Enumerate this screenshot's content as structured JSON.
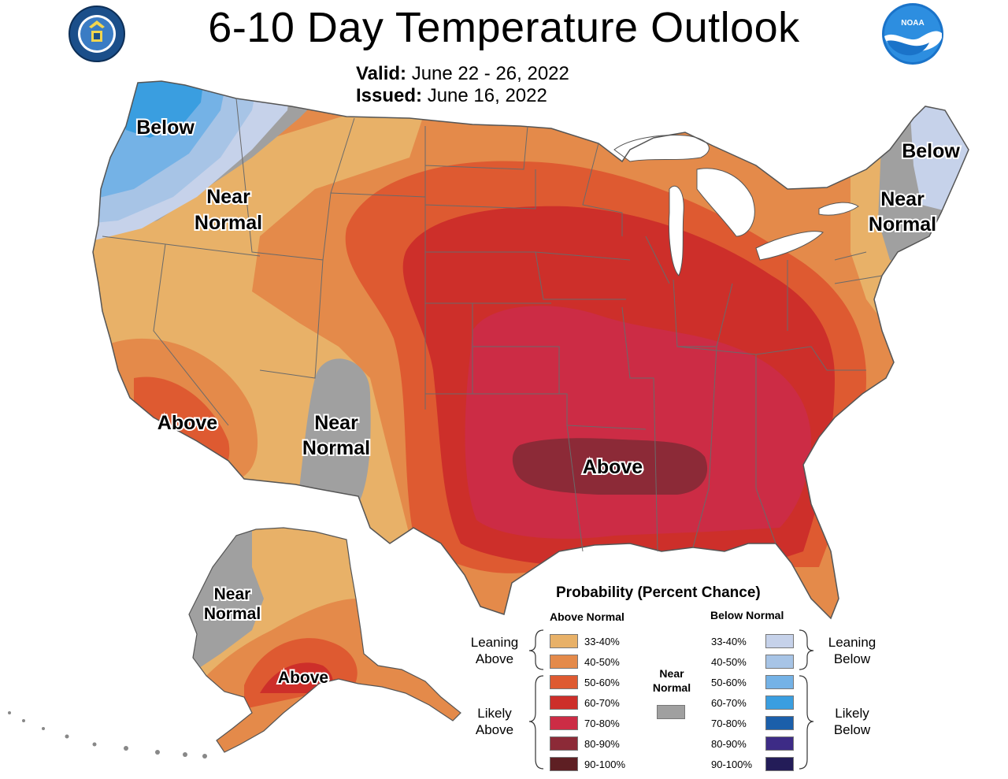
{
  "header": {
    "title": "6-10 Day Temperature Outlook",
    "valid_label": "Valid:",
    "valid_value": "June 22 - 26, 2022",
    "issued_label": "Issued:",
    "issued_value": "June 16, 2022"
  },
  "logos": {
    "left": "department-of-commerce-seal",
    "right": "noaa-logo"
  },
  "map_labels": {
    "nw_below": "Below",
    "nw_near_1": "Near",
    "nw_near_2": "Normal",
    "sw_above": "Above",
    "sw_near_1": "Near",
    "sw_near_2": "Normal",
    "central_above": "Above",
    "ne_below": "Below",
    "ne_near_1": "Near",
    "ne_near_2": "Normal",
    "ak_near_1": "Near",
    "ak_near_2": "Normal",
    "ak_above": "Above"
  },
  "colors": {
    "above_33_40": "#e8b168",
    "above_40_50": "#e48a4a",
    "above_50_60": "#de5a31",
    "above_60_70": "#cd2f2a",
    "above_70_80": "#cc2c45",
    "above_80_90": "#8c2a37",
    "above_90_100": "#5e1f23",
    "near_normal": "#a0a0a0",
    "below_33_40": "#c6d2ea",
    "below_40_50": "#a7c4e6",
    "below_50_60": "#74b2e6",
    "below_60_70": "#3a9ee0",
    "below_70_80": "#1b5faa",
    "below_80_90": "#3d2b86",
    "below_90_100": "#231c58"
  },
  "legend": {
    "title": "Probability (Percent Chance)",
    "above_header": "Above Normal",
    "below_header": "Below Normal",
    "leaning_above_1": "Leaning",
    "leaning_above_2": "Above",
    "likely_above_1": "Likely",
    "likely_above_2": "Above",
    "leaning_below_1": "Leaning",
    "leaning_below_2": "Below",
    "likely_below_1": "Likely",
    "likely_below_2": "Below",
    "near_normal_1": "Near",
    "near_normal_2": "Normal",
    "above_ranges": [
      "33-40%",
      "40-50%",
      "50-60%",
      "60-70%",
      "70-80%",
      "80-90%",
      "90-100%"
    ],
    "below_ranges": [
      "33-40%",
      "40-50%",
      "50-60%",
      "60-70%",
      "70-80%",
      "80-90%",
      "90-100%"
    ]
  }
}
